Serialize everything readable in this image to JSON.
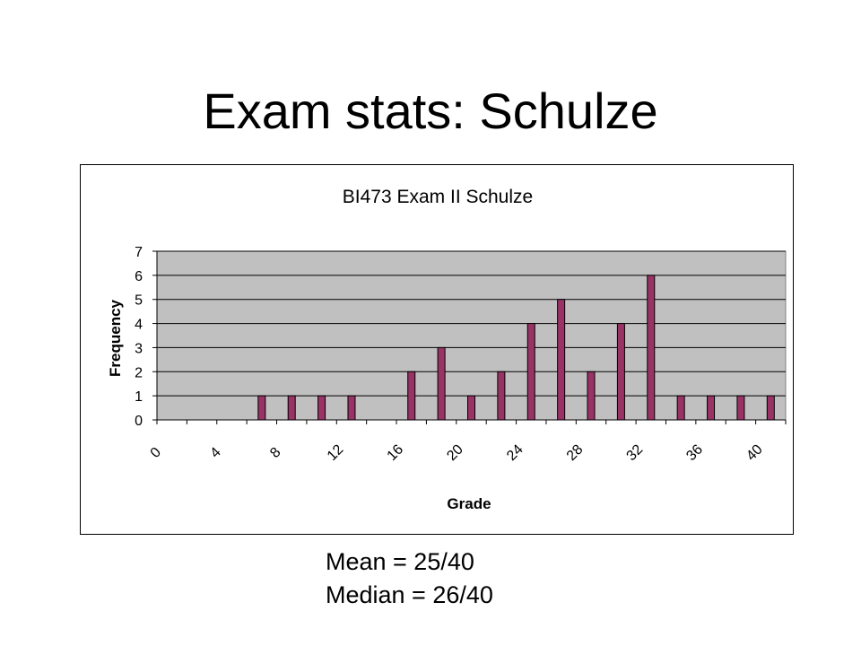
{
  "slide": {
    "title": "Exam stats: Schulze"
  },
  "stats": {
    "mean": "Mean = 25/40",
    "median": "Median = 26/40"
  },
  "chart_data": {
    "type": "bar",
    "title": "BI473 Exam II Schulze",
    "xlabel": "Grade",
    "ylabel": "Frequency",
    "x_min": 0,
    "x_max": 42,
    "x_step": 2,
    "x_tick_labels": [
      "0",
      "4",
      "8",
      "12",
      "16",
      "20",
      "24",
      "28",
      "32",
      "36",
      "40"
    ],
    "ylim": [
      0,
      7
    ],
    "y_ticks": [
      "0",
      "1",
      "2",
      "3",
      "4",
      "5",
      "6",
      "7"
    ],
    "grid": true,
    "legend": "none",
    "bars": [
      {
        "x": 7,
        "y": 1
      },
      {
        "x": 9,
        "y": 1
      },
      {
        "x": 11,
        "y": 1
      },
      {
        "x": 13,
        "y": 1
      },
      {
        "x": 17,
        "y": 2
      },
      {
        "x": 19,
        "y": 3
      },
      {
        "x": 21,
        "y": 1
      },
      {
        "x": 23,
        "y": 2
      },
      {
        "x": 25,
        "y": 4
      },
      {
        "x": 27,
        "y": 5
      },
      {
        "x": 29,
        "y": 2
      },
      {
        "x": 31,
        "y": 4
      },
      {
        "x": 33,
        "y": 6
      },
      {
        "x": 35,
        "y": 1
      },
      {
        "x": 37,
        "y": 1
      },
      {
        "x": 39,
        "y": 1
      },
      {
        "x": 41,
        "y": 1
      }
    ],
    "colors": {
      "plot_background": "#c0c0c0",
      "bar_fill": "#993366",
      "bar_stroke": "#000000",
      "gridline": "#000000"
    }
  }
}
